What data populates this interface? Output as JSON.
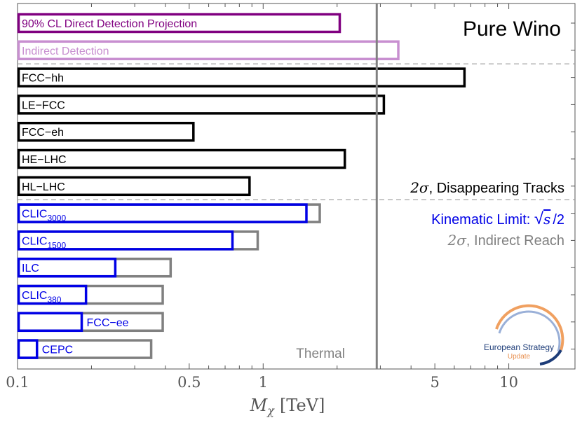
{
  "chart_data": {
    "type": "bar",
    "orientation": "horizontal",
    "x_scale": "log",
    "xlim": [
      0.1,
      18.6
    ],
    "xlabel_var": "M",
    "xlabel_sub": "χ",
    "xlabel_unit": "[TeV]",
    "x_ticks": [
      {
        "value": 0.1,
        "label": "0.1"
      },
      {
        "value": 0.5,
        "label": "0.5"
      },
      {
        "value": 1,
        "label": "1"
      },
      {
        "value": 5,
        "label": "5"
      },
      {
        "value": 10,
        "label": "10"
      }
    ],
    "title": "Pure Wino",
    "thermal_mass": 2.9,
    "thermal_label": "Thermal",
    "legend": {
      "disappearing_sigma": "2σ",
      "disappearing_text": ", Disappearing Tracks",
      "kinematic_text": "Kinematic Limit: ",
      "kinematic_sqrt": "√",
      "kinematic_s": "s",
      "kinematic_tail": "/2",
      "indirect_sigma": "2σ",
      "indirect_text": ", Indirect Reach"
    },
    "watermark_text": [
      "European Strategy",
      "Update"
    ],
    "colors": {
      "direct": "#800080",
      "indirect": "#c88fd0",
      "hadron": "#000000",
      "kinematic": "#0000e6",
      "reach": "#808080",
      "thermal_line": "#808080",
      "separator": "#999999"
    },
    "rows": [
      {
        "label": "90% CL Direct Detection Projection",
        "value": 2.05,
        "color": "direct",
        "inside": true
      },
      {
        "label": "Indirect Detection",
        "value": 3.55,
        "color": "indirect",
        "inside": true
      },
      {
        "label": "FCC−hh",
        "value": 6.6,
        "color": "hadron",
        "inside": true
      },
      {
        "label": "LE−FCC",
        "value": 3.1,
        "color": "hadron",
        "inside": true
      },
      {
        "label": "FCC−eh",
        "value": 0.52,
        "color": "hadron",
        "inside": true
      },
      {
        "label": "HE−LHC",
        "value": 2.15,
        "color": "hadron",
        "inside": true
      },
      {
        "label": "HL−LHC",
        "value": 0.88,
        "color": "hadron",
        "inside": true
      },
      {
        "label": "CLIC",
        "sub": "3000",
        "value": 1.5,
        "reach": 1.7,
        "color": "kinematic",
        "inside": true
      },
      {
        "label": "CLIC",
        "sub": "1500",
        "value": 0.75,
        "reach": 0.95,
        "color": "kinematic",
        "inside": true
      },
      {
        "label": "ILC",
        "value": 0.25,
        "reach": 0.42,
        "color": "kinematic",
        "inside": true
      },
      {
        "label": "CLIC",
        "sub": "380",
        "value": 0.19,
        "reach": 0.39,
        "color": "kinematic",
        "inside": true
      },
      {
        "label": "FCC−ee",
        "value": 0.1825,
        "reach": 0.39,
        "color": "kinematic",
        "inside": false
      },
      {
        "label": "CEPC",
        "value": 0.12,
        "reach": 0.35,
        "color": "kinematic",
        "inside": false
      }
    ]
  }
}
